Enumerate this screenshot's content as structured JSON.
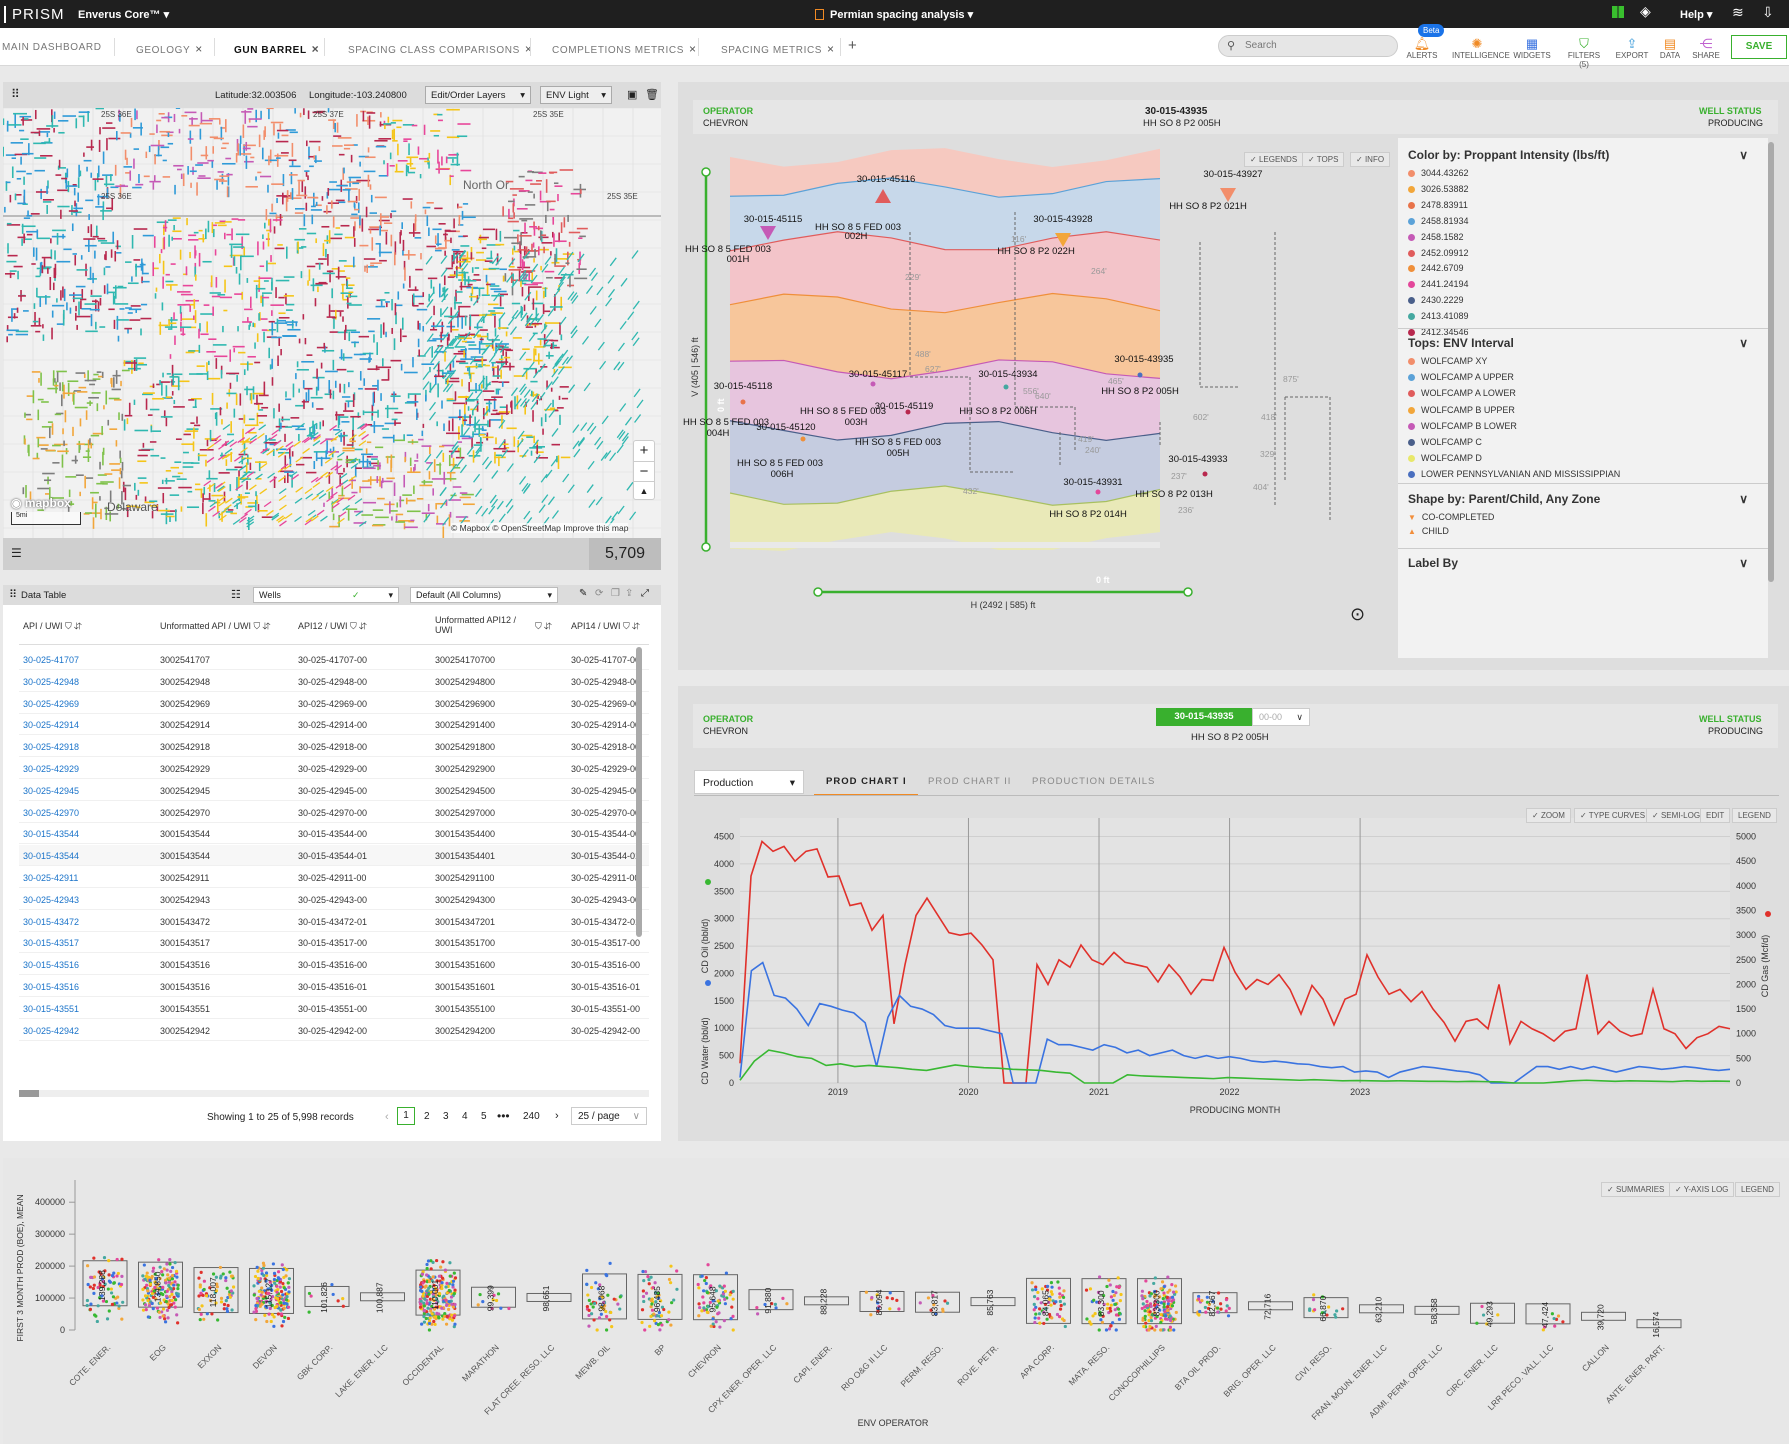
{
  "app": {
    "logo": "PRISM",
    "product": "Enverus Core™",
    "project": "Permian spacing analysis",
    "help": "Help"
  },
  "tabs": [
    {
      "label": "MAIN DASHBOARD"
    },
    {
      "label": "GEOLOGY"
    },
    {
      "label": "GUN BARREL"
    },
    {
      "label": "SPACING CLASS COMPARISONS"
    },
    {
      "label": "COMPLETIONS METRICS"
    },
    {
      "label": "SPACING METRICS"
    }
  ],
  "toolbar": {
    "search_placeholder": "Search",
    "beta": "Beta",
    "alerts": "ALERTS",
    "intelligence": "INTELLIGENCE",
    "widgets": "WIDGETS",
    "filters": "FILTERS (5)",
    "export": "EXPORT",
    "data": "DATA",
    "share": "SHARE",
    "save": "SAVE"
  },
  "map": {
    "lat": "Latitude:32.003506",
    "lon": "Longitude:-103.240800",
    "layers": "Edit/Order Layers",
    "style": "ENV Light",
    "mapbox": "mapbox",
    "scale": "5mi",
    "attribution": "© Mapbox © OpenStreetMap",
    "improve": "Improve this map",
    "count": "5,709",
    "place1": "North Or",
    "place2": "Delaware",
    "townships": [
      "25S 36E",
      "25S 37E",
      "25S 35E",
      "25S 36E",
      "25S 35E"
    ]
  },
  "table": {
    "title": "Data Table",
    "dataset": "Wells",
    "columns_sel": "Default (All Columns)",
    "headers": [
      "API / UWI",
      "Unformatted API / UWI",
      "API12 / UWI",
      "Unformatted API12 / UWI",
      "API14 / UWI"
    ],
    "rows": [
      [
        "30-025-41707",
        "3002541707",
        "30-025-41707-00",
        "300254170700",
        "30-025-41707-00"
      ],
      [
        "30-025-42948",
        "3002542948",
        "30-025-42948-00",
        "300254294800",
        "30-025-42948-00"
      ],
      [
        "30-025-42969",
        "3002542969",
        "30-025-42969-00",
        "300254296900",
        "30-025-42969-00"
      ],
      [
        "30-025-42914",
        "3002542914",
        "30-025-42914-00",
        "300254291400",
        "30-025-42914-00"
      ],
      [
        "30-025-42918",
        "3002542918",
        "30-025-42918-00",
        "300254291800",
        "30-025-42918-00"
      ],
      [
        "30-025-42929",
        "3002542929",
        "30-025-42929-00",
        "300254292900",
        "30-025-42929-00"
      ],
      [
        "30-025-42945",
        "3002542945",
        "30-025-42945-00",
        "300254294500",
        "30-025-42945-00"
      ],
      [
        "30-025-42970",
        "3002542970",
        "30-025-42970-00",
        "300254297000",
        "30-025-42970-00"
      ],
      [
        "30-015-43544",
        "3001543544",
        "30-015-43544-00",
        "300154354400",
        "30-015-43544-00"
      ],
      [
        "30-015-43544",
        "3001543544",
        "30-015-43544-01",
        "300154354401",
        "30-015-43544-01"
      ],
      [
        "30-025-42911",
        "3002542911",
        "30-025-42911-00",
        "300254291100",
        "30-025-42911-00"
      ],
      [
        "30-025-42943",
        "3002542943",
        "30-025-42943-00",
        "300254294300",
        "30-025-42943-00"
      ],
      [
        "30-015-43472",
        "3001543472",
        "30-015-43472-01",
        "300154347201",
        "30-015-43472-01"
      ],
      [
        "30-015-43517",
        "3001543517",
        "30-015-43517-00",
        "300154351700",
        "30-015-43517-00"
      ],
      [
        "30-015-43516",
        "3001543516",
        "30-015-43516-00",
        "300154351600",
        "30-015-43516-00"
      ],
      [
        "30-015-43516",
        "3001543516",
        "30-015-43516-01",
        "300154351601",
        "30-015-43516-01"
      ],
      [
        "30-015-43551",
        "3001543551",
        "30-015-43551-00",
        "300154355100",
        "30-015-43551-00"
      ],
      [
        "30-025-42942",
        "3002542942",
        "30-025-42942-00",
        "300254294200",
        "30-025-42942-00"
      ]
    ],
    "showing": "Showing 1 to 25 of 5,998 records",
    "pages": [
      "1",
      "2",
      "3",
      "4",
      "5",
      "•••",
      "240"
    ],
    "per_page": "25 / page"
  },
  "gun": {
    "operator_label": "OPERATOR",
    "operator": "CHEVRON",
    "api": "30-015-43935",
    "well": "HH SO 8 P2 005H",
    "status_label": "WELL STATUS",
    "status": "PRODUCING",
    "chips": [
      "LEGENDS",
      "TOPS",
      "INFO"
    ],
    "v_axis": "V (405 | 546) ft",
    "h_axis": "H (2492 | 585) ft",
    "zero": "0 ft",
    "wells": [
      {
        "api": "30-015-45116",
        "name": "HH SO 8 5 FED 003",
        "name2": "002H"
      },
      {
        "api": "30-015-45115",
        "name": "HH SO 8 5 FED 003",
        "name2": "001H"
      },
      {
        "api": "30-015-43928",
        "name": "HH SO 8 P2 022H",
        "name2": ""
      },
      {
        "api": "30-015-43927",
        "name": "HH SO 8 P2 021H",
        "name2": ""
      },
      {
        "api": "30-015-43935",
        "name": "HH SO 8 P2 005H",
        "name2": ""
      },
      {
        "api": "30-015-45118",
        "name": "HH SO 8 5 FED 003",
        "name2": "004H"
      },
      {
        "api": "30-015-45117",
        "name": "HH SO 8 5 FED 003",
        "name2": "003H"
      },
      {
        "api": "30-015-43934",
        "name": "HH SO 8 P2 006H",
        "name2": ""
      },
      {
        "api": "30-015-45119",
        "name": "HH SO 8 5 FED 003",
        "name2": "005H"
      },
      {
        "api": "30-015-45120",
        "name": "HH SO 8 5 FED 003",
        "name2": "006H"
      },
      {
        "api": "30-015-43933",
        "name": "HH SO 8 P2 013H",
        "name2": ""
      },
      {
        "api": "30-015-43931",
        "name": "HH SO 8 P2 014H",
        "name2": ""
      }
    ],
    "spacings": [
      "116'",
      "229'",
      "264'",
      "488'",
      "627'",
      "556'",
      "640'",
      "465'",
      "875'",
      "602'",
      "418'",
      "329'",
      "404'",
      "419'",
      "432'",
      "236'",
      "237'",
      "240'"
    ],
    "legend": {
      "color_title": "Color by: Proppant Intensity (lbs/ft)",
      "colors": [
        {
          "label": "3044.43262",
          "color": "#f28e6b"
        },
        {
          "label": "3026.53882",
          "color": "#f2a63a"
        },
        {
          "label": "2478.83911",
          "color": "#e8734a"
        },
        {
          "label": "2458.81934",
          "color": "#5ba2d8"
        },
        {
          "label": "2458.1582",
          "color": "#c55ab6"
        },
        {
          "label": "2452.09912",
          "color": "#e05c5c"
        },
        {
          "label": "2442.6709",
          "color": "#ef8f3a"
        },
        {
          "label": "2441.24194",
          "color": "#e3479a"
        },
        {
          "label": "2430.2229",
          "color": "#4a5f8a"
        },
        {
          "label": "2413.41089",
          "color": "#45a8a0"
        },
        {
          "label": "2412.34546",
          "color": "#b8284e"
        }
      ],
      "tops_title": "Tops: ENV Interval",
      "tops": [
        {
          "label": "WOLFCAMP XY",
          "color": "#f28e6b"
        },
        {
          "label": "WOLFCAMP A UPPER",
          "color": "#5ba2d8"
        },
        {
          "label": "WOLFCAMP A LOWER",
          "color": "#e05c5c"
        },
        {
          "label": "WOLFCAMP B UPPER",
          "color": "#f2a63a"
        },
        {
          "label": "WOLFCAMP B LOWER",
          "color": "#c55ab6"
        },
        {
          "label": "WOLFCAMP C",
          "color": "#4a5f8a"
        },
        {
          "label": "WOLFCAMP D",
          "color": "#e8e86a"
        },
        {
          "label": "LOWER PENNSYLVANIAN AND MISSISSIPPIAN",
          "color": "#4a6fbf"
        }
      ],
      "shape_title": "Shape by: Parent/Child, Any Zone",
      "shapes": [
        {
          "label": "CO-COMPLETED",
          "color": "#f28e3a"
        },
        {
          "label": "CHILD",
          "color": "#f28e3a"
        }
      ],
      "label_title": "Label By"
    }
  },
  "prod": {
    "operator_label": "OPERATOR",
    "operator": "CHEVRON",
    "api": "30-015-43935",
    "sub": "00-00",
    "well": "HH SO 8 P2 005H",
    "status_label": "WELL STATUS",
    "status": "PRODUCING",
    "dropdown": "Production",
    "tabs": [
      "PROD CHART I",
      "PROD CHART II",
      "PRODUCTION DETAILS"
    ],
    "chips": [
      "ZOOM",
      "TYPE CURVES",
      "SEMI-LOG",
      "EDIT",
      "LEGEND"
    ],
    "y_left1": "CD Oil (bbl/d)",
    "y_left2": "CD Water (bbl/d)",
    "y_right": "CD Gas (Mcf/d)",
    "x_label": "PRODUCING MONTH"
  },
  "chart_data": [
    {
      "type": "line",
      "x_ticks": [
        "2019",
        "2020",
        "2021",
        "2022",
        "2023"
      ],
      "y_left_ticks": [
        "0",
        "500",
        "1000",
        "1500",
        "2000",
        "2500",
        "3000",
        "3500",
        "4000",
        "4500"
      ],
      "y_right_ticks": [
        "0",
        "500",
        "1000",
        "1500",
        "2000",
        "2500",
        "3000",
        "3500",
        "4000",
        "4500",
        "5000"
      ],
      "ylim": [
        0,
        4500
      ],
      "y2lim": [
        0,
        5000
      ],
      "series": [
        {
          "name": "CD Gas (Mcf/d)",
          "axis": "right",
          "color": "#e0312b",
          "values": [
            400,
            4200,
            4900,
            4700,
            4800,
            4500,
            4700,
            4750,
            4180,
            4200,
            3600,
            3650,
            3100,
            3400,
            1200,
            2400,
            3400,
            3750,
            3400,
            3050,
            3000,
            3040,
            2800,
            2500,
            0,
            0,
            0,
            2400,
            2000,
            2500,
            2350,
            2800,
            2500,
            2400,
            2650,
            2450,
            2400,
            2350,
            2050,
            2400,
            2150,
            1800,
            2100,
            2080,
            2750,
            2250,
            1900,
            2100,
            2000,
            2200,
            1900,
            1400,
            1980,
            1700,
            1180,
            1700,
            1800,
            2600,
            2150,
            1800,
            1900,
            1650,
            1860,
            1500,
            1230,
            850,
            1250,
            1300,
            1100,
            2000,
            800,
            1250,
            1100,
            1000,
            850,
            1050,
            1100,
            2200,
            1000,
            1250,
            1050,
            950,
            1000,
            1900,
            1100,
            1000,
            700,
            920,
            1000,
            1150,
            1100
          ]
        },
        {
          "name": "CD Water (bbl/d)",
          "axis": "left",
          "color": "#3a73e0",
          "values": [
            100,
            2050,
            2200,
            1600,
            1550,
            1350,
            1050,
            1450,
            1400,
            1330,
            1280,
            1100,
            300,
            1200,
            1600,
            1400,
            1350,
            1250,
            1050,
            1000,
            1000,
            1000,
            950,
            900,
            0,
            0,
            0,
            800,
            700,
            700,
            650,
            600,
            700,
            650,
            550,
            600,
            500,
            550,
            600,
            500,
            450,
            500,
            450,
            480,
            450,
            400,
            380,
            400,
            380,
            350,
            340,
            300,
            280,
            300,
            200,
            220,
            200,
            100,
            200,
            250,
            300,
            280,
            250,
            220,
            200,
            150,
            0,
            0,
            0,
            150,
            300,
            300,
            250,
            300,
            250,
            300,
            250,
            200,
            250,
            300,
            280,
            250,
            270,
            300,
            280,
            250,
            230,
            250
          ]
        },
        {
          "name": "CD Oil (bbl/d)",
          "axis": "left",
          "color": "#38b832",
          "values": [
            50,
            400,
            600,
            550,
            480,
            450,
            320,
            350,
            300,
            320,
            300,
            280,
            250,
            230,
            280,
            330,
            300,
            280,
            270,
            250,
            240,
            230,
            200,
            180,
            0,
            0,
            0,
            150,
            130,
            120,
            110,
            100,
            90,
            80,
            100,
            90,
            80,
            70,
            60,
            50,
            60,
            50,
            40,
            45,
            40,
            35,
            40,
            35,
            30,
            30,
            25,
            30,
            25,
            20,
            0,
            0,
            0,
            20,
            40,
            50,
            40,
            30,
            40,
            35,
            30,
            25,
            40,
            30,
            35,
            30
          ]
        }
      ]
    },
    {
      "type": "scatter",
      "title": "",
      "xlabel": "ENV OPERATOR",
      "ylabel": "FIRST 3 MONTH PROD (BOE), MEAN",
      "ylim": [
        0,
        400000
      ],
      "y_ticks": [
        "0",
        "100000",
        "200000",
        "300000",
        "400000"
      ],
      "chips": [
        "SUMMARIES",
        "Y-AXIS LOG",
        "LEGEND"
      ],
      "categories": [
        "COTE. ENER.",
        "EOG",
        "EXXON",
        "DEVON",
        "GBK CORP.",
        "LAKE. ENER. LLC",
        "OCCIDENTAL",
        "MARATHON",
        "FLAT CREE. RESO. LLC",
        "MEWB. OIL",
        "BP",
        "CHEVRON",
        "CPX ENER. OPER. LLC",
        "CAPI. ENER.",
        "RIO O&G II LLC",
        "PERM. RESO.",
        "ROVE. PETR.",
        "APA CORP.",
        "MATA. RESO.",
        "CONOCOPHILLIPS",
        "BTA OIL PROD.",
        "BRIG. OPER. LLC",
        "CIVI. RESO.",
        "FRAN. MOUN. ENER. LLC",
        "ADMI. PERM. OPER. LLC",
        "CIRC. ENER. LLC",
        "LRR PECO. VALL. LLC",
        "CALLON",
        "ANTE. ENER. PART."
      ],
      "means": [
        "139,288",
        "134,850",
        "118,007",
        "115,127",
        "101,826",
        "100,887",
        "110,001",
        "99,399",
        "98,651",
        "98,068",
        "96,485",
        "95,648",
        "91,880",
        "88,228",
        "86,094",
        "83,817",
        "85,763",
        "84,065",
        "83,300",
        "83,300",
        "82,367",
        "72,716",
        "66,870",
        "63,210",
        "58,358",
        "49,293",
        "47,424",
        "39,720",
        "16,574"
      ],
      "mean_values": [
        139288,
        134850,
        118007,
        115127,
        101826,
        100887,
        110001,
        99399,
        98651,
        98068,
        96485,
        95648,
        91880,
        88228,
        86094,
        83817,
        85763,
        84065,
        83300,
        83300,
        82367,
        72716,
        66870,
        63210,
        58358,
        49293,
        47424,
        39720,
        16574
      ]
    }
  ]
}
